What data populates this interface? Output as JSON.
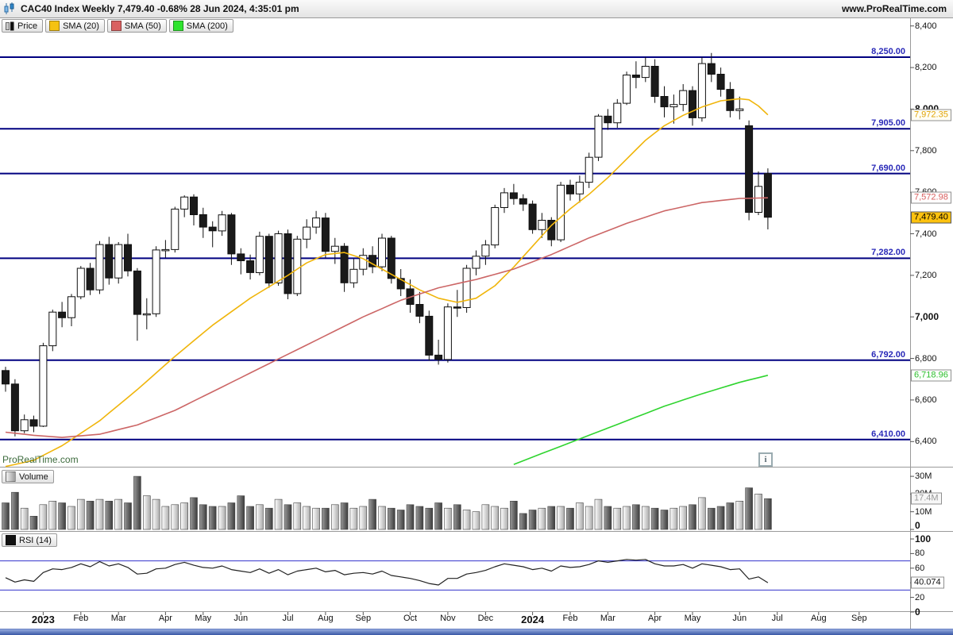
{
  "title_bar": {
    "title": "CAC40 Index Weekly 7,479.40 -0.68% 28 Jun 2024, 4:35:01 pm",
    "website": "www.ProRealTime.com"
  },
  "watermark": "ProRealTime.com",
  "info_icon_glyph": "i",
  "legend": {
    "items": [
      {
        "label": "Price",
        "swatch": "candle-icon"
      },
      {
        "label": "SMA (20)",
        "swatch": "#F5C211"
      },
      {
        "label": "SMA (50)",
        "swatch": "#D96161"
      },
      {
        "label": "SMA (200)",
        "swatch": "#2FE42F"
      }
    ]
  },
  "colors": {
    "hline": "#000080",
    "hline_label": "#2929B8",
    "sma20": "#F0B50B",
    "sma50": "#CC6666",
    "sma200": "#2FD42F",
    "candle_up_fill": "#FFFFFF",
    "candle_down_fill": "#1A1A1A",
    "candle_stroke": "#111111",
    "rsi_line": "#222222",
    "rsi_level": "#3333CC",
    "last_price_bg": "#FFC20E"
  },
  "chart_data": {
    "instrument": "CAC40 Index",
    "timeframe": "Weekly",
    "last_price": 7479.4,
    "change_pct": -0.68,
    "as_of": "28 Jun 2024, 4:35:01 pm",
    "price_pane": {
      "type": "candlestick",
      "y_ticks": [
        8400,
        8200,
        8000,
        7800,
        7600,
        7400,
        7200,
        7000,
        6800,
        6600,
        6400
      ],
      "bold_y_ticks": [
        8000,
        7000
      ],
      "horizontal_lines": [
        8250,
        7905,
        7690,
        7282,
        6792,
        6410
      ],
      "candles_ohlc": [
        [
          6742,
          6760,
          6640,
          6677
        ],
        [
          6677,
          6700,
          6425,
          6452
        ],
        [
          6452,
          6530,
          6440,
          6505
        ],
        [
          6505,
          6525,
          6445,
          6474
        ],
        [
          6474,
          6875,
          6470,
          6861
        ],
        [
          6861,
          7035,
          6835,
          7023
        ],
        [
          7023,
          7072,
          6950,
          6996
        ],
        [
          6996,
          7110,
          6955,
          7097
        ],
        [
          7097,
          7245,
          7085,
          7234
        ],
        [
          7234,
          7260,
          7105,
          7130
        ],
        [
          7130,
          7365,
          7110,
          7348
        ],
        [
          7348,
          7385,
          7155,
          7187
        ],
        [
          7187,
          7360,
          7160,
          7348
        ],
        [
          7348,
          7400,
          7195,
          7221
        ],
        [
          7221,
          7235,
          6885,
          7012
        ],
        [
          7012,
          7090,
          6940,
          7015
        ],
        [
          7015,
          7340,
          7000,
          7322
        ],
        [
          7322,
          7370,
          7285,
          7324
        ],
        [
          7324,
          7530,
          7310,
          7519
        ],
        [
          7519,
          7585,
          7480,
          7577
        ],
        [
          7577,
          7590,
          7440,
          7492
        ],
        [
          7492,
          7525,
          7380,
          7432
        ],
        [
          7432,
          7460,
          7335,
          7414
        ],
        [
          7414,
          7510,
          7390,
          7491
        ],
        [
          7491,
          7500,
          7250,
          7303
        ],
        [
          7303,
          7330,
          7205,
          7270
        ],
        [
          7270,
          7300,
          7180,
          7213
        ],
        [
          7213,
          7410,
          7200,
          7388
        ],
        [
          7388,
          7400,
          7140,
          7163
        ],
        [
          7163,
          7415,
          7150,
          7400
        ],
        [
          7400,
          7420,
          7085,
          7112
        ],
        [
          7112,
          7390,
          7100,
          7374
        ],
        [
          7374,
          7470,
          7330,
          7432
        ],
        [
          7432,
          7510,
          7400,
          7476
        ],
        [
          7476,
          7500,
          7285,
          7315
        ],
        [
          7315,
          7380,
          7255,
          7340
        ],
        [
          7340,
          7355,
          7120,
          7164
        ],
        [
          7164,
          7280,
          7140,
          7229
        ],
        [
          7229,
          7330,
          7200,
          7296
        ],
        [
          7296,
          7340,
          7210,
          7241
        ],
        [
          7241,
          7400,
          7220,
          7379
        ],
        [
          7379,
          7390,
          7160,
          7185
        ],
        [
          7185,
          7230,
          7100,
          7135
        ],
        [
          7135,
          7180,
          7020,
          7060
        ],
        [
          7060,
          7120,
          6970,
          7003
        ],
        [
          7003,
          7030,
          6790,
          6816
        ],
        [
          6816,
          6890,
          6770,
          6795
        ],
        [
          6795,
          7065,
          6780,
          7048
        ],
        [
          7048,
          7130,
          7000,
          7045
        ],
        [
          7045,
          7250,
          7020,
          7234
        ],
        [
          7234,
          7320,
          7200,
          7292
        ],
        [
          7292,
          7370,
          7250,
          7346
        ],
        [
          7346,
          7540,
          7330,
          7526
        ],
        [
          7526,
          7620,
          7500,
          7597
        ],
        [
          7597,
          7640,
          7540,
          7569
        ],
        [
          7569,
          7590,
          7510,
          7543
        ],
        [
          7543,
          7560,
          7400,
          7420
        ],
        [
          7420,
          7500,
          7380,
          7465
        ],
        [
          7465,
          7480,
          7340,
          7371
        ],
        [
          7371,
          7650,
          7360,
          7634
        ],
        [
          7634,
          7660,
          7560,
          7592
        ],
        [
          7592,
          7680,
          7550,
          7648
        ],
        [
          7648,
          7790,
          7620,
          7768
        ],
        [
          7768,
          7976,
          7750,
          7966
        ],
        [
          7966,
          8000,
          7900,
          7934
        ],
        [
          7934,
          8048,
          7910,
          8028
        ],
        [
          8028,
          8180,
          8020,
          8164
        ],
        [
          8164,
          8230,
          8100,
          8152
        ],
        [
          8152,
          8250,
          8130,
          8206
        ],
        [
          8206,
          8240,
          8030,
          8061
        ],
        [
          8061,
          8110,
          7960,
          8011
        ],
        [
          8011,
          8070,
          7930,
          8022
        ],
        [
          8022,
          8120,
          7990,
          8089
        ],
        [
          8089,
          8110,
          7920,
          7958
        ],
        [
          7958,
          8250,
          7940,
          8219
        ],
        [
          8219,
          8270,
          8130,
          8168
        ],
        [
          8168,
          8200,
          8060,
          8095
        ],
        [
          8095,
          8130,
          7960,
          7993
        ],
        [
          7993,
          8060,
          7950,
          8001
        ],
        [
          7920,
          7945,
          7465,
          7503
        ],
        [
          7503,
          7700,
          7490,
          7628
        ],
        [
          7690,
          7715,
          7421,
          7479.4
        ]
      ],
      "overlays": [
        {
          "name": "SMA (20)",
          "last_label": "7,972.35",
          "last_value": 7972.35,
          "points": [
            [
              0,
              6280
            ],
            [
              3,
              6310
            ],
            [
              6,
              6380
            ],
            [
              10,
              6500
            ],
            [
              14,
              6650
            ],
            [
              18,
              6810
            ],
            [
              22,
              6960
            ],
            [
              26,
              7090
            ],
            [
              30,
              7200
            ],
            [
              32,
              7260
            ],
            [
              34,
              7300
            ],
            [
              36,
              7310
            ],
            [
              38,
              7280
            ],
            [
              40,
              7230
            ],
            [
              42,
              7180
            ],
            [
              44,
              7130
            ],
            [
              46,
              7090
            ],
            [
              48,
              7070
            ],
            [
              50,
              7090
            ],
            [
              52,
              7150
            ],
            [
              54,
              7240
            ],
            [
              56,
              7340
            ],
            [
              58,
              7440
            ],
            [
              60,
              7520
            ],
            [
              62,
              7590
            ],
            [
              64,
              7670
            ],
            [
              66,
              7760
            ],
            [
              68,
              7850
            ],
            [
              70,
              7920
            ],
            [
              72,
              7970
            ],
            [
              74,
              8010
            ],
            [
              76,
              8040
            ],
            [
              78,
              8050
            ],
            [
              79,
              8045
            ],
            [
              80,
              8015
            ],
            [
              81,
              7972.35
            ]
          ]
        },
        {
          "name": "SMA (50)",
          "last_label": "7,572.98",
          "last_value": 7572.98,
          "points": [
            [
              0,
              6445
            ],
            [
              3,
              6430
            ],
            [
              6,
              6420
            ],
            [
              10,
              6435
            ],
            [
              14,
              6480
            ],
            [
              18,
              6550
            ],
            [
              22,
              6640
            ],
            [
              26,
              6730
            ],
            [
              30,
              6820
            ],
            [
              34,
              6910
            ],
            [
              38,
              7000
            ],
            [
              42,
              7080
            ],
            [
              46,
              7140
            ],
            [
              50,
              7180
            ],
            [
              54,
              7230
            ],
            [
              58,
              7300
            ],
            [
              62,
              7380
            ],
            [
              66,
              7450
            ],
            [
              70,
              7510
            ],
            [
              74,
              7550
            ],
            [
              78,
              7570
            ],
            [
              81,
              7572.98
            ]
          ]
        },
        {
          "name": "SMA (200)",
          "last_label": "6,718.96",
          "last_value": 6718.96,
          "points": [
            [
              54,
              6290
            ],
            [
              58,
              6360
            ],
            [
              62,
              6430
            ],
            [
              66,
              6500
            ],
            [
              70,
              6570
            ],
            [
              74,
              6630
            ],
            [
              78,
              6685
            ],
            [
              81,
              6718.96
            ]
          ]
        }
      ],
      "last_price_label": "7,479.40"
    },
    "volume_pane": {
      "type": "bar",
      "name": "Volume",
      "unit": "millions",
      "y_ticks": [
        "30M",
        "20M",
        "10M",
        "0"
      ],
      "y_tick_values": [
        30,
        20,
        10,
        0
      ],
      "last_label": "17.4M",
      "values_millions": [
        15,
        21,
        12,
        7.5,
        14,
        16,
        15,
        13,
        17,
        16,
        17,
        16,
        17,
        15,
        30,
        19,
        17,
        13,
        14,
        15,
        18,
        14,
        13,
        13,
        15,
        19,
        13,
        14,
        12,
        17,
        14,
        15,
        13,
        12,
        12,
        14,
        15,
        12,
        13,
        17,
        13,
        12,
        11,
        14,
        13,
        12,
        15,
        12,
        14,
        11,
        10,
        14,
        13,
        12,
        16,
        9,
        11,
        12,
        13,
        13,
        12,
        15,
        13,
        17,
        13,
        12,
        13,
        14,
        13,
        12,
        11,
        12,
        13,
        14,
        18,
        12,
        13,
        15,
        16,
        23.5,
        20,
        17.4
      ]
    },
    "rsi_pane": {
      "type": "line",
      "name": "RSI (14)",
      "period": 14,
      "y_ticks": [
        100,
        80,
        60,
        40,
        20,
        0
      ],
      "bold_y_ticks": [
        100,
        0
      ],
      "levels": [
        70,
        30
      ],
      "last_label": "40.074",
      "last_value": 40.074,
      "values": [
        47,
        41,
        44,
        42,
        54,
        59,
        58,
        61,
        66,
        62,
        69,
        63,
        66,
        61,
        52,
        53,
        59,
        60,
        65,
        68,
        64,
        61,
        60,
        63,
        58,
        56,
        54,
        59,
        53,
        58,
        51,
        56,
        58,
        60,
        55,
        57,
        51,
        53,
        54,
        52,
        56,
        50,
        48,
        46,
        43,
        39,
        37,
        46,
        46,
        52,
        54,
        57,
        62,
        66,
        64,
        62,
        58,
        60,
        56,
        63,
        61,
        62,
        65,
        70,
        68,
        70,
        72,
        71,
        72,
        66,
        63,
        63,
        65,
        60,
        66,
        64,
        62,
        58,
        59,
        45,
        48,
        40.074
      ]
    },
    "x_axis": {
      "labels": [
        {
          "t": "2023",
          "i": 4,
          "b": 1
        },
        {
          "t": "Feb",
          "i": 8
        },
        {
          "t": "Mar",
          "i": 12
        },
        {
          "t": "Apr",
          "i": 17
        },
        {
          "t": "May",
          "i": 21
        },
        {
          "t": "Jun",
          "i": 25
        },
        {
          "t": "Jul",
          "i": 30
        },
        {
          "t": "Aug",
          "i": 34
        },
        {
          "t": "Sep",
          "i": 38
        },
        {
          "t": "Oct",
          "i": 43
        },
        {
          "t": "Nov",
          "i": 47
        },
        {
          "t": "Dec",
          "i": 51
        },
        {
          "t": "2024",
          "i": 56,
          "b": 1
        },
        {
          "t": "Feb",
          "i": 60
        },
        {
          "t": "Mar",
          "i": 64
        },
        {
          "t": "Apr",
          "i": 69
        },
        {
          "t": "May",
          "i": 73
        },
        {
          "t": "Jun",
          "i": 78
        },
        {
          "t": "Jul",
          "i": 82
        },
        {
          "t": "Aug",
          "i": 86.4
        },
        {
          "t": "Sep",
          "i": 90.7
        }
      ]
    }
  }
}
